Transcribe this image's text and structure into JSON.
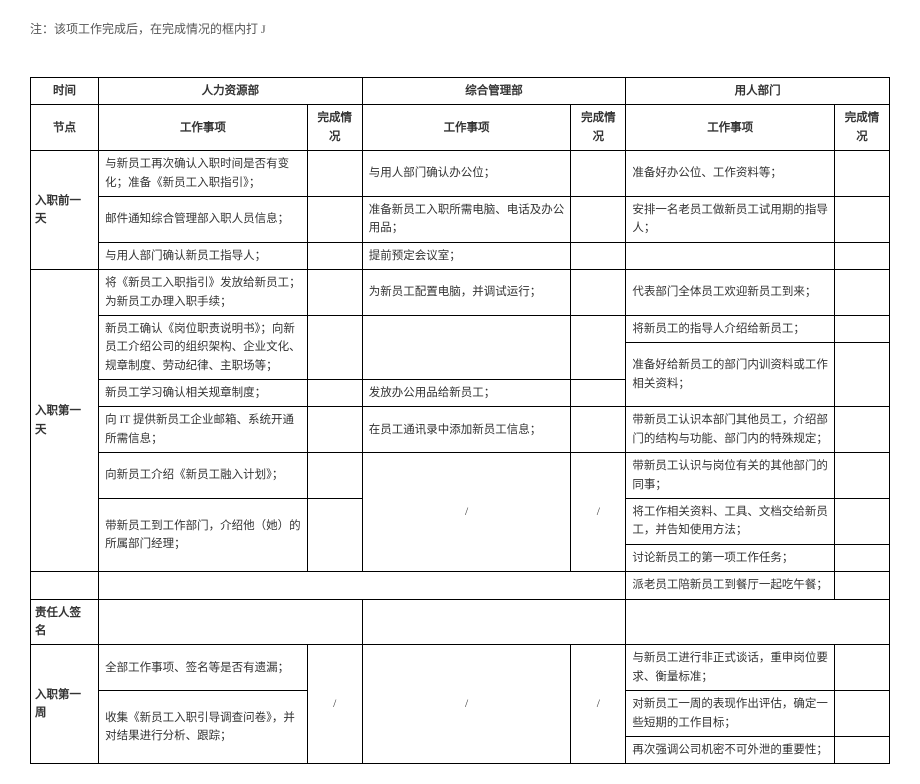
{
  "note": "注：该项工作完成后，在完成情况的框内打 J",
  "header": {
    "time": "时间",
    "dept_hr": "人力资源部",
    "dept_admin": "综合管理部",
    "dept_using": "用人部门",
    "node": "节点",
    "task": "工作事项",
    "done": "完成情况"
  },
  "labels": {
    "day_before": "入职前一天",
    "first_day": "入职第一天",
    "signer": "责任人签名",
    "first_week": "入职第一周"
  },
  "day_before": {
    "hr": [
      "与新员工再次确认入职时间是否有变化；准备《新员工入职指引》；",
      "邮件通知综合管理部入职人员信息；",
      "与用人部门确认新员工指导人；"
    ],
    "admin": [
      "与用人部门确认办公位；",
      "准备新员工入职所需电脑、电话及办公用品；",
      "提前预定会议室；"
    ],
    "using": [
      "准备好办公位、工作资料等；",
      "安排一名老员工做新员工试用期的指导人；",
      ""
    ]
  },
  "first_day": {
    "hr": [
      "将《新员工入职指引》发放给新员工；为新员工办理入职手续；",
      "新员工确认《岗位职责说明书》；向新员工介绍公司的组织架构、企业文化、规章制度、劳动纪律、主职场等；",
      "新员工学习确认相关规章制度；",
      "向 IT 提供新员工企业邮箱、系统开通所需信息；",
      "向新员工介绍《新员工融入计划》；",
      "带新员工到工作部门，介绍他（她）的所属部门经理；"
    ],
    "admin": [
      "为新员工配置电脑，并调试运行；",
      "发放办公用品给新员工；",
      "在员工通讯录中添加新员工信息；"
    ],
    "admin_slash": "/",
    "using": [
      "代表部门全体员工欢迎新员工到来；",
      "将新员工的指导人介绍给新员工；",
      "准备好给新员工的部门内训资料或工作相关资料；",
      "带新员工认识本部门其他员工，介绍部门的结构与功能、部门内的特殊规定；",
      "带新员工认识与岗位有关的其他部门的同事；",
      "将工作相关资料、工具、文档交给新员工，并告知使用方法；",
      "讨论新员工的第一项工作任务；",
      "派老员工陪新员工到餐厅一起吃午餐；"
    ]
  },
  "first_week": {
    "hr": [
      "全部工作事项、签名等是否有遗漏；",
      "收集《新员工入职引导调查问卷》，并对结果进行分析、跟踪；"
    ],
    "hr_slash": "/",
    "admin_slash": "/",
    "using": [
      "与新员工进行非正式谈话，重申岗位要求、衡量标准；",
      "对新员工一周的表现作出评估，确定一些短期的工作目标；",
      "再次强调公司机密不可外泄的重要性；"
    ]
  }
}
